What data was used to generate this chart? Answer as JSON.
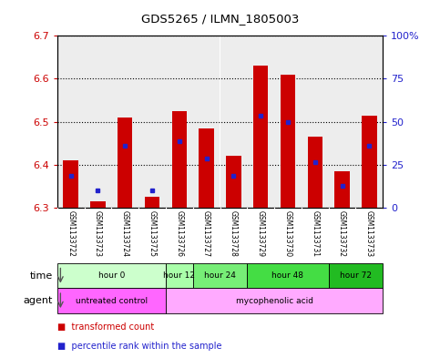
{
  "title": "GDS5265 / ILMN_1805003",
  "samples": [
    "GSM1133722",
    "GSM1133723",
    "GSM1133724",
    "GSM1133725",
    "GSM1133726",
    "GSM1133727",
    "GSM1133728",
    "GSM1133729",
    "GSM1133730",
    "GSM1133731",
    "GSM1133732",
    "GSM1133733"
  ],
  "bar_bottom": 6.3,
  "bar_tops": [
    6.41,
    6.315,
    6.51,
    6.325,
    6.525,
    6.485,
    6.42,
    6.63,
    6.61,
    6.465,
    6.385,
    6.515
  ],
  "percentile_values": [
    6.375,
    6.34,
    6.445,
    6.34,
    6.455,
    6.415,
    6.375,
    6.515,
    6.5,
    6.405,
    6.35,
    6.445
  ],
  "ylim_left": [
    6.3,
    6.7
  ],
  "ylim_right": [
    0,
    100
  ],
  "yticks_left": [
    6.3,
    6.4,
    6.5,
    6.6,
    6.7
  ],
  "yticks_right": [
    0,
    25,
    50,
    75,
    100
  ],
  "ytick_labels_right": [
    "0",
    "25",
    "50",
    "75",
    "100%"
  ],
  "bar_color": "#cc0000",
  "blue_color": "#2222cc",
  "bar_width": 0.55,
  "time_groups": [
    {
      "label": "hour 0",
      "start": 0,
      "end": 3,
      "color": "#ccffcc"
    },
    {
      "label": "hour 12",
      "start": 4,
      "end": 4,
      "color": "#aaffaa"
    },
    {
      "label": "hour 24",
      "start": 5,
      "end": 6,
      "color": "#77ee77"
    },
    {
      "label": "hour 48",
      "start": 7,
      "end": 9,
      "color": "#44dd44"
    },
    {
      "label": "hour 72",
      "start": 10,
      "end": 11,
      "color": "#22bb22"
    }
  ],
  "agent_groups": [
    {
      "label": "untreated control",
      "start": 0,
      "end": 3,
      "color": "#ff66ff"
    },
    {
      "label": "mycophenolic acid",
      "start": 4,
      "end": 11,
      "color": "#ffaaff"
    }
  ],
  "time_row_label": "time",
  "agent_row_label": "agent",
  "legend_items": [
    {
      "color": "#cc0000",
      "label": "transformed count"
    },
    {
      "color": "#2222cc",
      "label": "percentile rank within the sample"
    }
  ],
  "bg_color": "#ffffff",
  "plot_bg_color": "#ffffff",
  "grid_color": "#000000",
  "ylabel_left_color": "#cc0000",
  "ylabel_right_color": "#2222cc",
  "title_color": "#000000",
  "sample_band_color": "#cccccc"
}
